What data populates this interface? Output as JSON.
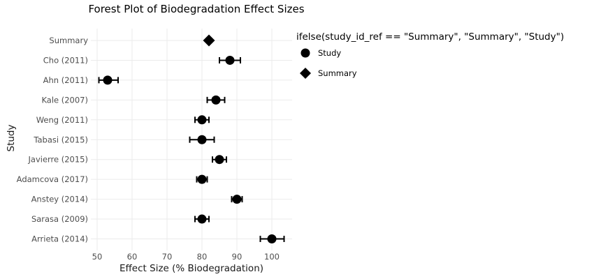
{
  "title": "Forest Plot of Biodegradation Effect Sizes",
  "legend": {
    "title": "ifelse(study_id_ref == \"Summary\", \"Summary\", \"Study\")",
    "position": "right",
    "items": [
      {
        "label": "Study",
        "shape": "circle"
      },
      {
        "label": "Summary",
        "shape": "diamond"
      }
    ]
  },
  "colors": {
    "point": "#000000",
    "grid": "#ebebeb",
    "axis_text": "#4d4d4d",
    "text": "#000000",
    "background": "#ffffff"
  },
  "chart_data": {
    "type": "scatter",
    "subtype": "forest-plot",
    "orientation": "horizontal",
    "title": "Forest Plot of Biodegradation Effect Sizes",
    "xlabel": "Effect Size (% Biodegradation)",
    "ylabel": "Study",
    "xlim": [
      48.2,
      105.8
    ],
    "x_ticks": [
      50,
      60,
      70,
      80,
      90,
      100
    ],
    "grid": true,
    "legend_position": "right",
    "studies": [
      {
        "label": "Summary",
        "shape": "diamond",
        "estimate": 82,
        "ci_low": null,
        "ci_high": null
      },
      {
        "label": "Cho (2011)",
        "shape": "circle",
        "estimate": 88,
        "ci_low": 85,
        "ci_high": 91
      },
      {
        "label": "Ahn (2011)",
        "shape": "circle",
        "estimate": 53,
        "ci_low": 50.5,
        "ci_high": 56
      },
      {
        "label": "Kale (2007)",
        "shape": "circle",
        "estimate": 84,
        "ci_low": 81.5,
        "ci_high": 86.5
      },
      {
        "label": "Weng (2011)",
        "shape": "circle",
        "estimate": 80,
        "ci_low": 78,
        "ci_high": 82
      },
      {
        "label": "Tabasi (2015)",
        "shape": "circle",
        "estimate": 80,
        "ci_low": 76.5,
        "ci_high": 83.5
      },
      {
        "label": "Javierre (2015)",
        "shape": "circle",
        "estimate": 85,
        "ci_low": 83,
        "ci_high": 87
      },
      {
        "label": "Adamcova (2017)",
        "shape": "circle",
        "estimate": 80,
        "ci_low": 78.5,
        "ci_high": 81.5
      },
      {
        "label": "Anstey (2014)",
        "shape": "circle",
        "estimate": 90,
        "ci_low": 88.5,
        "ci_high": 91.5
      },
      {
        "label": "Sarasa (2009)",
        "shape": "circle",
        "estimate": 80,
        "ci_low": 78,
        "ci_high": 82
      },
      {
        "label": "Arrieta (2014)",
        "shape": "circle",
        "estimate": 100,
        "ci_low": 96.7,
        "ci_high": 103.5
      }
    ]
  }
}
